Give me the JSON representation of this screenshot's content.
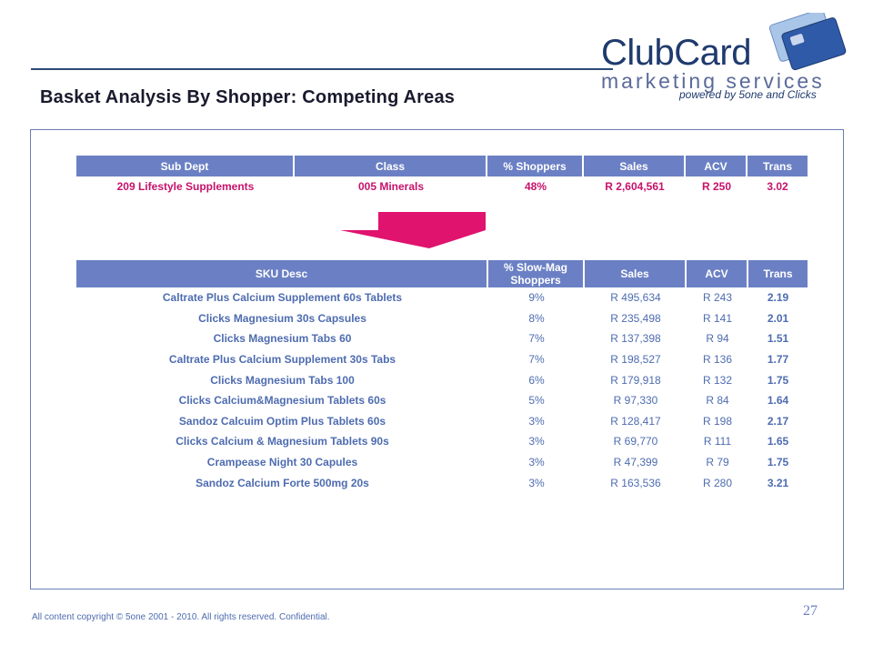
{
  "title": "Basket Analysis By Shopper: Competing Areas",
  "logo": {
    "name": "ClubCard",
    "subtitle": "marketing services",
    "powered": "powered by 5one and Clicks"
  },
  "table1": {
    "headers": [
      "Sub Dept",
      "Class",
      "% Shoppers",
      "Sales",
      "ACV",
      "Trans"
    ],
    "row": [
      "209 Lifestyle Supplements",
      "005 Minerals",
      "48%",
      "R 2,604,561",
      "R 250",
      "3.02"
    ]
  },
  "table2": {
    "headers": [
      "SKU Desc",
      "% Slow-Mag Shoppers",
      "Sales",
      "ACV",
      "Trans"
    ],
    "rows": [
      [
        "Caltrate Plus Calcium Supplement 60s Tablets",
        "9%",
        "R 495,634",
        "R 243",
        "2.19"
      ],
      [
        "Clicks Magnesium 30s Capsules",
        "8%",
        "R 235,498",
        "R 141",
        "2.01"
      ],
      [
        "Clicks Magnesium Tabs 60",
        "7%",
        "R 137,398",
        "R 94",
        "1.51"
      ],
      [
        "Caltrate Plus Calcium Supplement 30s Tabs",
        "7%",
        "R 198,527",
        "R 136",
        "1.77"
      ],
      [
        "Clicks Magnesium Tabs 100",
        "6%",
        "R 179,918",
        "R 132",
        "1.75"
      ],
      [
        "Clicks Calcium&Magnesium Tablets 60s",
        "5%",
        "R 97,330",
        "R 84",
        "1.64"
      ],
      [
        "Sandoz Calcuim Optim Plus Tablets 60s",
        "3%",
        "R 128,417",
        "R 198",
        "2.17"
      ],
      [
        "Clicks Calcium & Magnesium Tablets 90s",
        "3%",
        "R 69,770",
        "R 111",
        "1.65"
      ],
      [
        "Crampease Night 30 Capules",
        "3%",
        "R 47,399",
        "R 79",
        "1.75"
      ],
      [
        "Sandoz Calcium Forte 500mg 20s",
        "3%",
        "R 163,536",
        "R 280",
        "3.21"
      ]
    ]
  },
  "footer": {
    "copyright": "All content copyright © 5one 2001 - 2010. All rights reserved. Confidential.",
    "page_number": "27"
  },
  "colors": {
    "header_bg": "#6b80c4",
    "highlight": "#c6126b",
    "body_text": "#4e6cb0",
    "arrow": "#e0136f"
  }
}
